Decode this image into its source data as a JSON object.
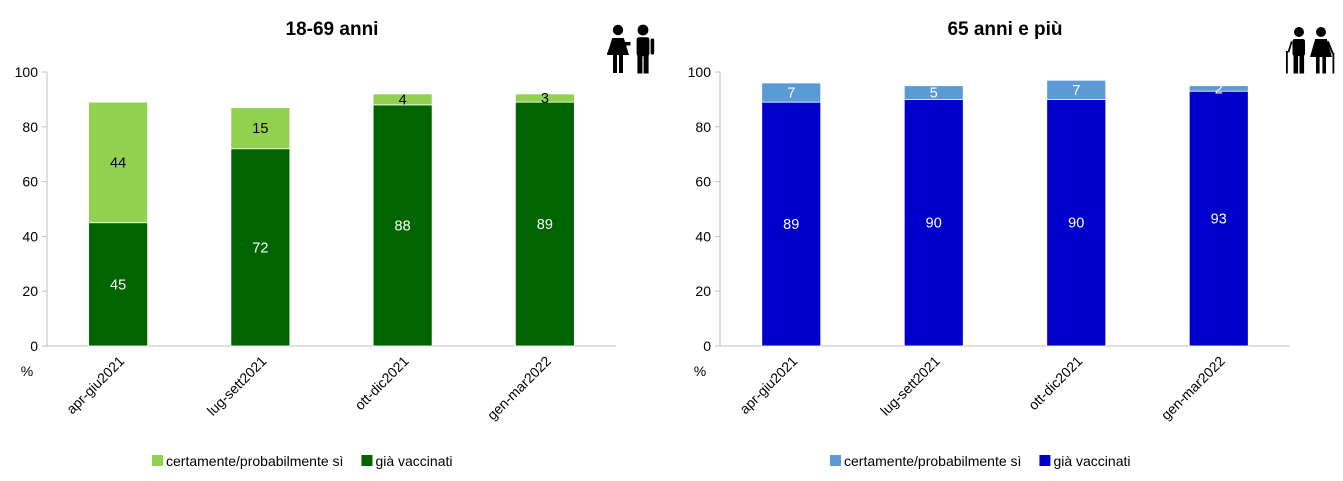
{
  "chart_data": [
    {
      "type": "bar",
      "stacked": true,
      "title": "18-69 anni",
      "ylabel": "%",
      "ylim": [
        0,
        100
      ],
      "yticks": [
        0,
        20,
        40,
        60,
        80,
        100
      ],
      "categories": [
        "apr-giu2021",
        "lug-sett2021",
        "ott-dic2021",
        "gen-mar2022"
      ],
      "series": [
        {
          "name": "già vaccinati",
          "values": [
            45,
            72,
            88,
            89
          ],
          "color": "#006400",
          "label_color": "#ffffff"
        },
        {
          "name": "certamente/probabilmente sì",
          "values": [
            44,
            15,
            4,
            3
          ],
          "color": "#92d050",
          "label_color": "#000000"
        }
      ],
      "icon": "adult-couple-icon",
      "grid": false,
      "legend_position": "bottom"
    },
    {
      "type": "bar",
      "stacked": true,
      "title": "65 anni e più",
      "ylabel": "%",
      "ylim": [
        0,
        100
      ],
      "yticks": [
        0,
        20,
        40,
        60,
        80,
        100
      ],
      "categories": [
        "apr-giu2021",
        "lug-sett2021",
        "ott-dic2021",
        "gen-mar2022"
      ],
      "series": [
        {
          "name": "già vaccinati",
          "values": [
            89,
            90,
            90,
            93
          ],
          "color": "#0000cc",
          "label_color": "#ffffff"
        },
        {
          "name": "certamente/probabilmente sì",
          "values": [
            7,
            5,
            7,
            2
          ],
          "color": "#5b9bd5",
          "label_color": "#ffffff"
        }
      ],
      "icon": "elderly-couple-icon",
      "grid": false,
      "legend_position": "bottom"
    }
  ]
}
